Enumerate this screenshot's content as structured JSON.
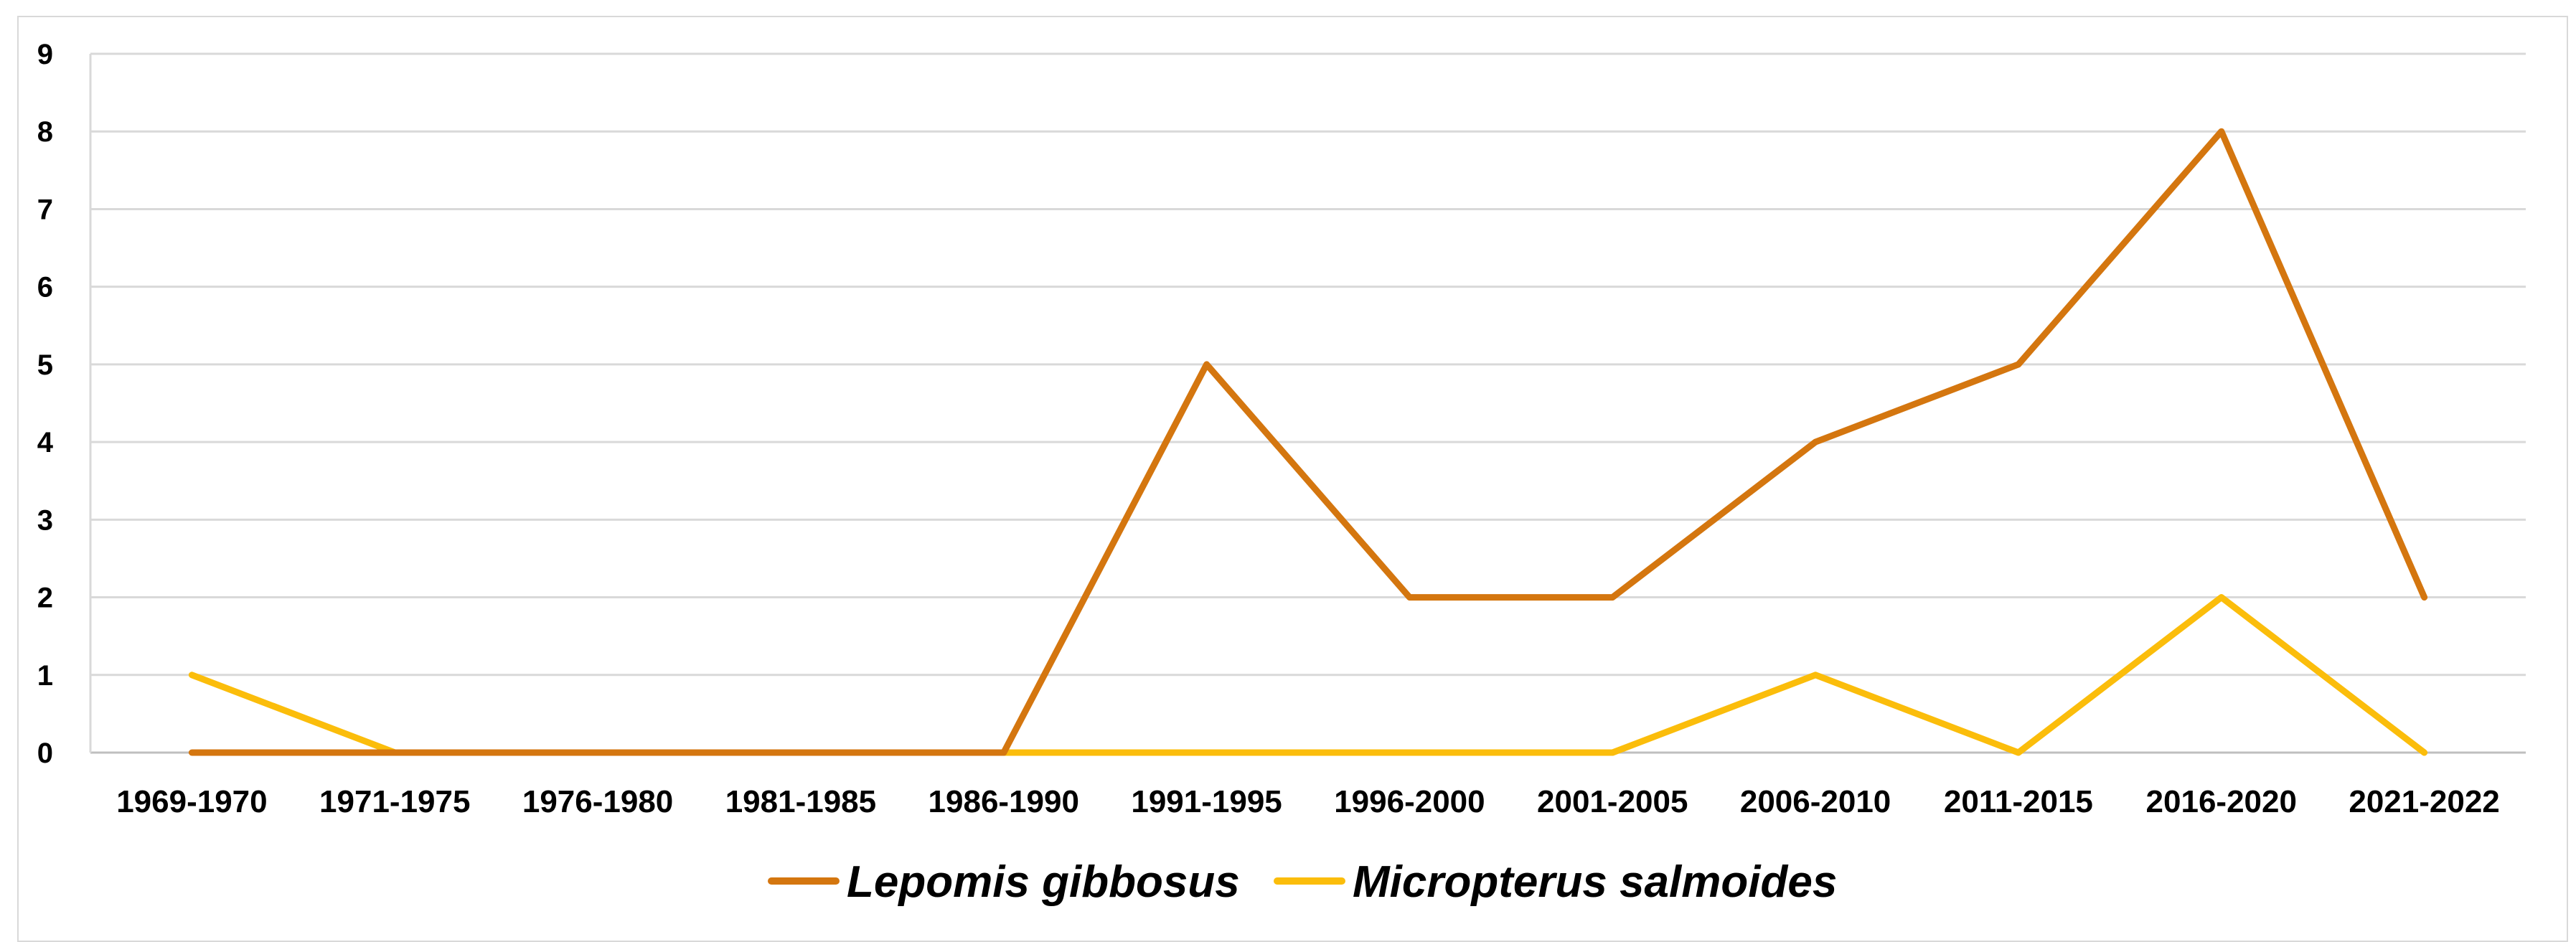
{
  "chart_data": {
    "type": "line",
    "title": "",
    "xlabel": "",
    "ylabel": "",
    "categories": [
      "1969-1970",
      "1971-1975",
      "1976-1980",
      "1981-1985",
      "1986-1990",
      "1991-1995",
      "1996-2000",
      "2001-2005",
      "2006-2010",
      "2011-2015",
      "2016-2020",
      "2021-2022"
    ],
    "ylim": [
      0,
      9
    ],
    "yticks": [
      "0",
      "1",
      "2",
      "3",
      "4",
      "5",
      "6",
      "7",
      "8",
      "9"
    ],
    "grid": true,
    "legend_position": "bottom",
    "series": [
      {
        "name": "Lepomis gibbosus",
        "color": "#d4760f",
        "values": [
          0,
          0,
          0,
          0,
          0,
          5,
          2,
          2,
          4,
          5,
          8,
          2
        ]
      },
      {
        "name": "Micropterus salmoides",
        "color": "#fbbd0b",
        "values": [
          1,
          0,
          0,
          0,
          0,
          0,
          0,
          0,
          1,
          0,
          2,
          0
        ]
      }
    ]
  }
}
